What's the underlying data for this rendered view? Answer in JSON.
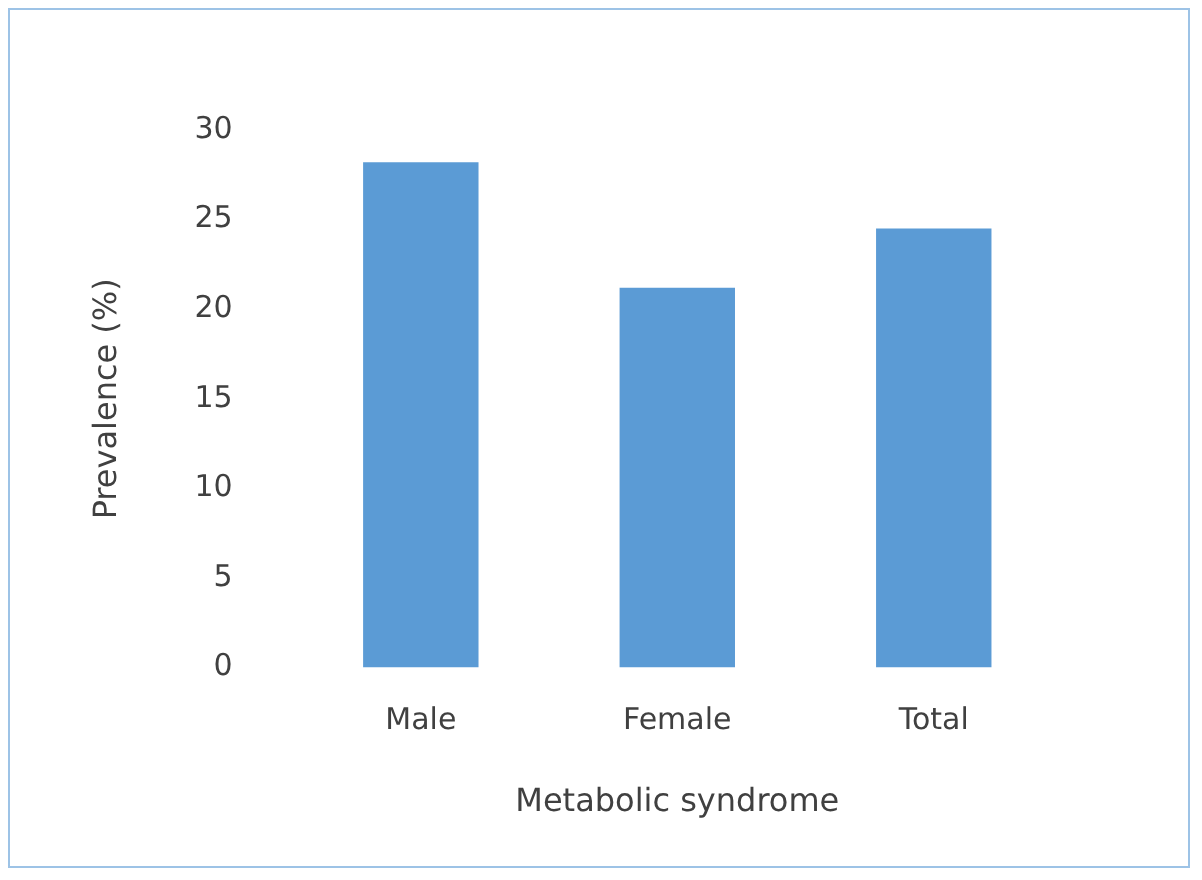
{
  "chart_data": {
    "type": "bar",
    "xlabel": "Metabolic syndrome",
    "ylabel": "Prevalence (%)",
    "categories": [
      "Male",
      "Female",
      "Total"
    ],
    "values": [
      28.2,
      21.2,
      24.5
    ],
    "color": "#5b9bd5",
    "ylim": [
      0,
      30
    ],
    "yticks": [
      0,
      5,
      10,
      15,
      20,
      25,
      30
    ],
    "grid": false
  }
}
